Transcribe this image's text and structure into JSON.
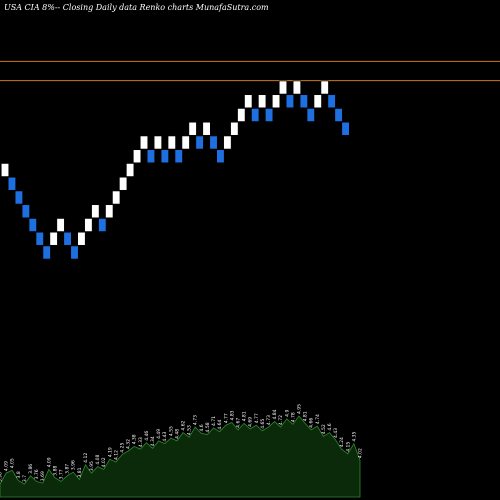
{
  "header": {
    "title": "USA CIA 8%-- Closing Daily data Renko charts MunafaSutra.com"
  },
  "colors": {
    "background": "#000000",
    "up_brick": "#ffffff",
    "down_brick": "#1e6fe0",
    "reference_line": "#c77a1a",
    "volume_fill": "#0a2a0a",
    "volume_stroke": "#2e8b2e"
  },
  "chart_data": [
    {
      "type": "renko",
      "y_unit": "brick levels",
      "ylim": [
        0,
        16
      ],
      "grid": false,
      "reference_lines": [
        15.9,
        14.5
      ],
      "bricks": [
        {
          "level": 8,
          "dir": "up"
        },
        {
          "level": 7,
          "dir": "down"
        },
        {
          "level": 6,
          "dir": "down"
        },
        {
          "level": 5,
          "dir": "down"
        },
        {
          "level": 4,
          "dir": "down"
        },
        {
          "level": 3,
          "dir": "down"
        },
        {
          "level": 2,
          "dir": "down"
        },
        {
          "level": 3,
          "dir": "up"
        },
        {
          "level": 4,
          "dir": "up"
        },
        {
          "level": 3,
          "dir": "down"
        },
        {
          "level": 2,
          "dir": "down"
        },
        {
          "level": 3,
          "dir": "up"
        },
        {
          "level": 4,
          "dir": "up"
        },
        {
          "level": 5,
          "dir": "up"
        },
        {
          "level": 4,
          "dir": "down"
        },
        {
          "level": 5,
          "dir": "up"
        },
        {
          "level": 6,
          "dir": "up"
        },
        {
          "level": 7,
          "dir": "up"
        },
        {
          "level": 8,
          "dir": "up"
        },
        {
          "level": 9,
          "dir": "up"
        },
        {
          "level": 10,
          "dir": "up"
        },
        {
          "level": 9,
          "dir": "down"
        },
        {
          "level": 10,
          "dir": "up"
        },
        {
          "level": 9,
          "dir": "down"
        },
        {
          "level": 10,
          "dir": "up"
        },
        {
          "level": 9,
          "dir": "down"
        },
        {
          "level": 10,
          "dir": "up"
        },
        {
          "level": 11,
          "dir": "up"
        },
        {
          "level": 10,
          "dir": "down"
        },
        {
          "level": 11,
          "dir": "up"
        },
        {
          "level": 10,
          "dir": "down"
        },
        {
          "level": 9,
          "dir": "down"
        },
        {
          "level": 10,
          "dir": "up"
        },
        {
          "level": 11,
          "dir": "up"
        },
        {
          "level": 12,
          "dir": "up"
        },
        {
          "level": 13,
          "dir": "up"
        },
        {
          "level": 12,
          "dir": "down"
        },
        {
          "level": 13,
          "dir": "up"
        },
        {
          "level": 12,
          "dir": "down"
        },
        {
          "level": 13,
          "dir": "up"
        },
        {
          "level": 14,
          "dir": "up"
        },
        {
          "level": 13,
          "dir": "down"
        },
        {
          "level": 14,
          "dir": "up"
        },
        {
          "level": 13,
          "dir": "down"
        },
        {
          "level": 12,
          "dir": "down"
        },
        {
          "level": 13,
          "dir": "up"
        },
        {
          "level": 14,
          "dir": "up"
        },
        {
          "level": 13,
          "dir": "down"
        },
        {
          "level": 12,
          "dir": "down"
        },
        {
          "level": 11,
          "dir": "down"
        }
      ]
    },
    {
      "type": "area",
      "series_role": "volume",
      "ylim": [
        0,
        100
      ],
      "values": [
        14,
        26,
        29,
        18,
        14,
        23,
        17,
        15,
        30,
        21,
        17,
        23,
        27,
        19,
        35,
        26,
        33,
        30,
        41,
        38,
        46,
        50,
        55,
        52,
        59,
        53,
        61,
        58,
        64,
        61,
        70,
        65,
        76,
        69,
        68,
        75,
        71,
        78,
        81,
        73,
        80,
        74,
        78,
        72,
        76,
        82,
        76,
        85,
        79,
        88,
        80,
        73,
        77,
        66,
        70,
        62,
        52,
        47,
        58,
        40
      ],
      "labels": [
        "3.98",
        "4.09",
        "4.05",
        "3.8",
        "3.7",
        "3.86",
        "3.76",
        "3.69",
        "4.09",
        "3.88",
        "3.77",
        "3.87",
        "3.96",
        "3.81",
        "4.12",
        "3.95",
        "4.08",
        "4.02",
        "4.19",
        "4.12",
        "4.25",
        "4.32",
        "4.38",
        "4.33",
        "4.46",
        "4.34",
        "4.49",
        "4.43",
        "4.55",
        "4.48",
        "4.62",
        "4.53",
        "4.73",
        "4.6",
        "4.58",
        "4.71",
        "4.64",
        "4.77",
        "4.83",
        "4.67",
        "4.81",
        "4.69",
        "4.77",
        "4.65",
        "4.73",
        "4.84",
        "4.72",
        "4.9",
        "4.78",
        "4.95",
        "4.81",
        "4.66",
        "4.74",
        "4.52",
        "4.6",
        "4.43",
        "4.24",
        "4.15",
        "4.35",
        "4.02"
      ]
    }
  ]
}
